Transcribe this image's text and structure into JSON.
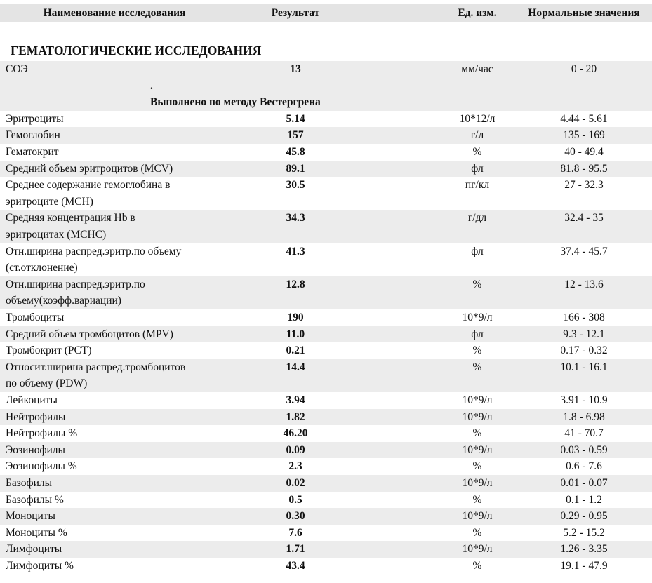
{
  "header": {
    "columns": [
      "Наименование исследования",
      "Результат",
      "Ед. изм.",
      "Нормальные значения"
    ]
  },
  "section_title": "ГЕМАТОЛОГИЧЕСКИЕ ИССЛЕДОВАНИЯ",
  "first_row": {
    "name": [
      "СОЭ"
    ],
    "result": "13",
    "unit": "мм/час",
    "range": "0 - 20"
  },
  "method_note": {
    "mark": ".",
    "text": "Выполнено по методу Вестергрена"
  },
  "rows": [
    {
      "name": [
        "Эритроциты"
      ],
      "result": "5.14",
      "unit": "10*12/л",
      "range": "4.44 - 5.61"
    },
    {
      "name": [
        "Гемоглобин"
      ],
      "result": "157",
      "unit": "г/л",
      "range": "135 - 169"
    },
    {
      "name": [
        "Гематокрит"
      ],
      "result": "45.8",
      "unit": "%",
      "range": "40 - 49.4"
    },
    {
      "name": [
        "Средний объем эритроцитов (MCV)"
      ],
      "result": "89.1",
      "unit": "фл",
      "range": "81.8 - 95.5"
    },
    {
      "name": [
        "Среднее содержание гемоглобина в",
        "эритроците (MCH)"
      ],
      "result": "30.5",
      "unit": "пг/кл",
      "range": "27 - 32.3"
    },
    {
      "name": [
        "Средняя концентрация Hb в",
        "эритроцитах (MCHC)"
      ],
      "result": "34.3",
      "unit": "г/дл",
      "range": "32.4 - 35"
    },
    {
      "name": [
        "Отн.ширина распред.эритр.по объему",
        "(ст.отклонение)"
      ],
      "result": "41.3",
      "unit": "фл",
      "range": "37.4 - 45.7"
    },
    {
      "name": [
        "Отн.ширина распред.эритр.по",
        "объему(коэфф.вариации)"
      ],
      "result": "12.8",
      "unit": "%",
      "range": "12 - 13.6"
    },
    {
      "name": [
        "Тромбоциты"
      ],
      "result": "190",
      "unit": "10*9/л",
      "range": "166 - 308"
    },
    {
      "name": [
        "Средний объем тромбоцитов (MPV)"
      ],
      "result": "11.0",
      "unit": "фл",
      "range": "9.3 - 12.1"
    },
    {
      "name": [
        "Тромбокрит (PCT)"
      ],
      "result": "0.21",
      "unit": "%",
      "range": "0.17 - 0.32"
    },
    {
      "name": [
        "Относит.ширина распред.тромбоцитов",
        "по объему (PDW)"
      ],
      "result": "14.4",
      "unit": "%",
      "range": "10.1 - 16.1"
    },
    {
      "name": [
        "Лейкоциты"
      ],
      "result": "3.94",
      "unit": "10*9/л",
      "range": "3.91 - 10.9"
    },
    {
      "name": [
        "Нейтрофилы"
      ],
      "result": "1.82",
      "unit": "10*9/л",
      "range": "1.8 - 6.98"
    },
    {
      "name": [
        "Нейтрофилы %"
      ],
      "result": "46.20",
      "unit": "%",
      "range": "41 - 70.7"
    },
    {
      "name": [
        "Эозинофилы"
      ],
      "result": "0.09",
      "unit": "10*9/л",
      "range": "0.03 - 0.59"
    },
    {
      "name": [
        "Эозинофилы %"
      ],
      "result": "2.3",
      "unit": "%",
      "range": "0.6 - 7.6"
    },
    {
      "name": [
        "Базофилы"
      ],
      "result": "0.02",
      "unit": "10*9/л",
      "range": "0.01 - 0.07"
    },
    {
      "name": [
        "Базофилы %"
      ],
      "result": "0.5",
      "unit": "%",
      "range": "0.1 - 1.2"
    },
    {
      "name": [
        "Моноциты"
      ],
      "result": "0.30",
      "unit": "10*9/л",
      "range": "0.29 - 0.95"
    },
    {
      "name": [
        "Моноциты %"
      ],
      "result": "7.6",
      "unit": "%",
      "range": "5.2 - 15.2"
    },
    {
      "name": [
        "Лимфоциты"
      ],
      "result": "1.71",
      "unit": "10*9/л",
      "range": "1.26 - 3.35"
    },
    {
      "name": [
        "Лимфоциты %"
      ],
      "result": "43.4",
      "unit": "%",
      "range": "19.1 - 47.9"
    }
  ]
}
